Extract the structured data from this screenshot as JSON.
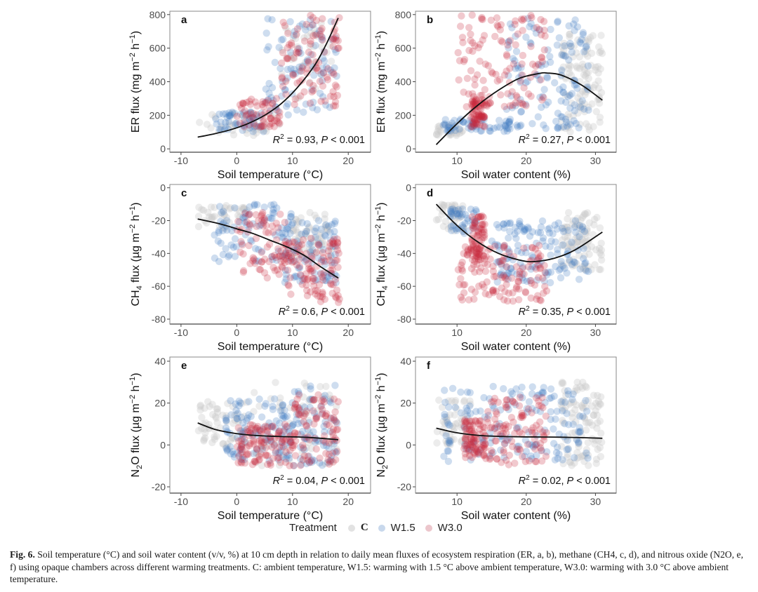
{
  "legend": {
    "title": "Treatment",
    "items": [
      {
        "label": "C",
        "color": "#c8c8c8"
      },
      {
        "label": "W1.5",
        "color": "#3a78c0"
      },
      {
        "label": "W3.0",
        "color": "#c8283c"
      }
    ]
  },
  "caption": {
    "label": "Fig. 6.",
    "text": "Soil temperature (°C) and soil water content (v/v, %) at 10 cm depth in relation to daily mean fluxes of ecosystem respiration (ER, a, b), methane (CH4, c, d), and nitrous oxide (N2O, e, f) using opaque chambers across different warming treatments. C: ambient temperature, W1.5: warming with 1.5 °C above ambient temperature, W3.0: warming with 3.0 °C above ambient temperature."
  },
  "chart_data": [
    {
      "type": "scatter",
      "panel": "a",
      "xlabel": "Soil temperature (°C)",
      "ylabel": "ER flux (mg m-2 h-1)",
      "xlim": [
        -12,
        24
      ],
      "ylim": [
        -20,
        820
      ],
      "xticks": [
        -10,
        0,
        10,
        20
      ],
      "yticks": [
        0,
        200,
        400,
        600,
        800
      ],
      "annotation": {
        "r2": "0.93",
        "p": "0.001",
        "text_pre": "R",
        "text_mid": " = 0.93, ",
        "p_label": "P",
        "text_post": " < 0.001"
      },
      "fit": {
        "type": "exponential",
        "x": [
          -7,
          -4,
          -1,
          2,
          5,
          8,
          11,
          14,
          16,
          18.2
        ],
        "y": [
          70,
          90,
          115,
          150,
          200,
          270,
          370,
          500,
          620,
          780
        ]
      },
      "clusters": [
        {
          "series": "C",
          "x": [
            -7,
            8
          ],
          "y": [
            80,
            220
          ],
          "n": 40
        },
        {
          "series": "C",
          "x": [
            8,
            17
          ],
          "y": [
            300,
            750
          ],
          "n": 40
        },
        {
          "series": "W1.5",
          "x": [
            -4,
            5
          ],
          "y": [
            100,
            220
          ],
          "n": 50
        },
        {
          "series": "W1.5",
          "x": [
            5,
            18
          ],
          "y": [
            200,
            780
          ],
          "n": 90
        },
        {
          "series": "W3.0",
          "x": [
            0,
            8
          ],
          "y": [
            130,
            300
          ],
          "n": 60
        },
        {
          "series": "W3.0",
          "x": [
            8,
            18.5
          ],
          "y": [
            250,
            800
          ],
          "n": 100
        }
      ]
    },
    {
      "type": "scatter",
      "panel": "b",
      "xlabel": "Soil water content (%)",
      "ylabel": "ER flux (mg m-2 h-1)",
      "xlim": [
        4,
        33
      ],
      "ylim": [
        -20,
        820
      ],
      "xticks": [
        10,
        20,
        30
      ],
      "yticks": [
        0,
        200,
        400,
        600,
        800
      ],
      "annotation": {
        "r2": "0.27",
        "p": "0.001",
        "text_pre": "R",
        "text_mid": " = 0.27, ",
        "p_label": "P",
        "text_post": " < 0.001"
      },
      "fit": {
        "type": "quadratic",
        "x": [
          7,
          10,
          13,
          16,
          19,
          22,
          23,
          25,
          28,
          31
        ],
        "y": [
          25,
          150,
          260,
          350,
          420,
          450,
          452,
          440,
          380,
          290
        ]
      },
      "clusters": [
        {
          "series": "C",
          "x": [
            7,
            11
          ],
          "y": [
            80,
            150
          ],
          "n": 30
        },
        {
          "series": "C",
          "x": [
            25,
            31
          ],
          "y": [
            100,
            700
          ],
          "n": 110
        },
        {
          "series": "W1.5",
          "x": [
            8,
            18
          ],
          "y": [
            100,
            180
          ],
          "n": 60
        },
        {
          "series": "W1.5",
          "x": [
            17,
            29
          ],
          "y": [
            120,
            780
          ],
          "n": 130
        },
        {
          "series": "W3.0",
          "x": [
            12,
            14
          ],
          "y": [
            130,
            310
          ],
          "n": 70
        },
        {
          "series": "W3.0",
          "x": [
            10,
            23
          ],
          "y": [
            250,
            800
          ],
          "n": 120
        }
      ]
    },
    {
      "type": "scatter",
      "panel": "c",
      "xlabel": "Soil temperature (°C)",
      "ylabel": "CH4 flux (µg m-2 h-1)",
      "xlim": [
        -12,
        24
      ],
      "ylim": [
        -83,
        2
      ],
      "xticks": [
        -10,
        0,
        10,
        20
      ],
      "yticks": [
        0,
        -20,
        -40,
        -60,
        -80
      ],
      "annotation": {
        "r2": "0.6",
        "p": "0.001",
        "text_pre": "R",
        "text_mid": " = 0.6, ",
        "p_label": "P",
        "text_post": " < 0.001"
      },
      "fit": {
        "type": "polynomial",
        "x": [
          -7,
          -3,
          0,
          3,
          6,
          9,
          12,
          15,
          18.2
        ],
        "y": [
          -19,
          -22,
          -25,
          -28,
          -32,
          -36,
          -41,
          -48,
          -55
        ]
      },
      "clusters": [
        {
          "series": "C",
          "x": [
            -7,
            2
          ],
          "y": [
            -25,
            -10
          ],
          "n": 40
        },
        {
          "series": "C",
          "x": [
            10,
            17
          ],
          "y": [
            -45,
            -15
          ],
          "n": 60
        },
        {
          "series": "W1.5",
          "x": [
            -4,
            10
          ],
          "y": [
            -45,
            -10
          ],
          "n": 80
        },
        {
          "series": "W1.5",
          "x": [
            8,
            18
          ],
          "y": [
            -58,
            -20
          ],
          "n": 90
        },
        {
          "series": "W3.0",
          "x": [
            0,
            9
          ],
          "y": [
            -55,
            -15
          ],
          "n": 80
        },
        {
          "series": "W3.0",
          "x": [
            9,
            18.5
          ],
          "y": [
            -70,
            -30
          ],
          "n": 110
        }
      ]
    },
    {
      "type": "scatter",
      "panel": "d",
      "xlabel": "Soil water content (%)",
      "ylabel": "CH4 flux (µg m-2 h-1)",
      "xlim": [
        4,
        33
      ],
      "ylim": [
        -83,
        2
      ],
      "xticks": [
        10,
        20,
        30
      ],
      "yticks": [
        0,
        -20,
        -40,
        -60,
        -80
      ],
      "annotation": {
        "r2": "0.35",
        "p": "0.001",
        "text_pre": "R",
        "text_mid": " = 0.35, ",
        "p_label": "P",
        "text_post": " < 0.001"
      },
      "fit": {
        "type": "quadratic",
        "x": [
          7,
          10,
          13,
          16,
          19,
          21,
          24,
          27,
          31
        ],
        "y": [
          -10,
          -23,
          -33,
          -40,
          -44,
          -45,
          -43,
          -38,
          -27
        ]
      },
      "clusters": [
        {
          "series": "C",
          "x": [
            7,
            11
          ],
          "y": [
            -27,
            -10
          ],
          "n": 40
        },
        {
          "series": "C",
          "x": [
            25,
            31
          ],
          "y": [
            -50,
            -15
          ],
          "n": 90
        },
        {
          "series": "W1.5",
          "x": [
            9,
            13
          ],
          "y": [
            -28,
            -12
          ],
          "n": 40
        },
        {
          "series": "W1.5",
          "x": [
            15,
            29
          ],
          "y": [
            -58,
            -20
          ],
          "n": 140
        },
        {
          "series": "W3.0",
          "x": [
            12,
            14
          ],
          "y": [
            -45,
            -17
          ],
          "n": 70
        },
        {
          "series": "W3.0",
          "x": [
            10,
            23
          ],
          "y": [
            -70,
            -35
          ],
          "n": 130
        }
      ]
    },
    {
      "type": "scatter",
      "panel": "e",
      "xlabel": "Soil temperature (°C)",
      "ylabel": "N2O flux (µg m-2 h-1)",
      "xlim": [
        -12,
        24
      ],
      "ylim": [
        -23,
        42
      ],
      "xticks": [
        -10,
        0,
        10,
        20
      ],
      "yticks": [
        -20,
        0,
        20,
        40
      ],
      "annotation": {
        "r2": "0.04",
        "p": "0.001",
        "text_pre": "R",
        "text_mid": " = 0.04, ",
        "p_label": "P",
        "text_post": " < 0.001"
      },
      "fit": {
        "type": "exponential",
        "x": [
          -7,
          -4,
          -1,
          2,
          5,
          8,
          11,
          14,
          18.2
        ],
        "y": [
          10.5,
          7.5,
          5.8,
          4.8,
          4.3,
          4,
          3.8,
          3.4,
          2.5
        ]
      },
      "clusters": [
        {
          "series": "C",
          "x": [
            -7,
            2
          ],
          "y": [
            -2,
            22
          ],
          "n": 60
        },
        {
          "series": "C",
          "x": [
            3,
            18
          ],
          "y": [
            -10,
            30
          ],
          "n": 70
        },
        {
          "series": "W1.5",
          "x": [
            -2,
            10
          ],
          "y": [
            -8,
            22
          ],
          "n": 110
        },
        {
          "series": "W1.5",
          "x": [
            10,
            18
          ],
          "y": [
            -10,
            29
          ],
          "n": 70
        },
        {
          "series": "W3.0",
          "x": [
            0,
            10
          ],
          "y": [
            -10,
            10
          ],
          "n": 110
        },
        {
          "series": "W3.0",
          "x": [
            10,
            18.5
          ],
          "y": [
            -10,
            24
          ],
          "n": 90
        }
      ]
    },
    {
      "type": "scatter",
      "panel": "f",
      "xlabel": "Soil water content (%)",
      "ylabel": "N2O flux (µg m-2 h-1)",
      "xlim": [
        4,
        33
      ],
      "ylim": [
        -23,
        42
      ],
      "xticks": [
        10,
        20,
        30
      ],
      "yticks": [
        -20,
        0,
        20,
        40
      ],
      "annotation": {
        "r2": "0.02",
        "p": "0.001",
        "text_pre": "R",
        "text_mid": " = 0.02, ",
        "p_label": "P",
        "text_post": " < 0.001"
      },
      "fit": {
        "type": "exponential",
        "x": [
          7,
          10,
          13,
          16,
          19,
          22,
          25,
          28,
          31
        ],
        "y": [
          8,
          5.8,
          4.6,
          4.1,
          3.9,
          3.8,
          3.7,
          3.5,
          3.2
        ]
      },
      "clusters": [
        {
          "series": "C",
          "x": [
            7,
            12
          ],
          "y": [
            0,
            22
          ],
          "n": 50
        },
        {
          "series": "C",
          "x": [
            25,
            31
          ],
          "y": [
            -10,
            30
          ],
          "n": 100
        },
        {
          "series": "W1.5",
          "x": [
            8,
            29
          ],
          "y": [
            -8,
            28
          ],
          "n": 160
        },
        {
          "series": "W3.0",
          "x": [
            11,
            14
          ],
          "y": [
            -6,
            12
          ],
          "n": 80
        },
        {
          "series": "W3.0",
          "x": [
            14,
            23
          ],
          "y": [
            -10,
            23
          ],
          "n": 110
        }
      ]
    }
  ]
}
